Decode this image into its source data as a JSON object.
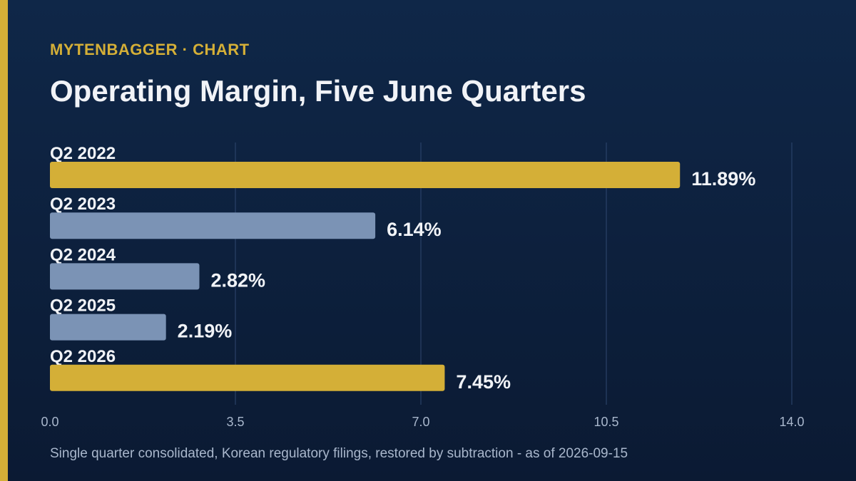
{
  "header": {
    "brand": "MYTENBAGGER · CHART",
    "title": "Operating Margin, Five June Quarters"
  },
  "footnote": "Single quarter consolidated, Korean regulatory filings, restored by subtraction - as of 2026-09-15",
  "colors": {
    "highlight": "#d4af37",
    "normal": "#7b93b5",
    "grid": "#2f4770",
    "text": "#f1f3f7",
    "tick": "#a9b7cc"
  },
  "chart_data": {
    "type": "bar",
    "orientation": "horizontal",
    "categories": [
      "Q2 2022",
      "Q2 2023",
      "Q2 2024",
      "Q2 2025",
      "Q2 2026"
    ],
    "values": [
      11.89,
      6.14,
      2.82,
      2.19,
      7.45
    ],
    "value_labels": [
      "11.89%",
      "6.14%",
      "2.82%",
      "2.19%",
      "7.45%"
    ],
    "highlighted": [
      true,
      false,
      false,
      false,
      true
    ],
    "xlim": [
      0,
      14
    ],
    "xticks": [
      "0.0",
      "3.5",
      "7.0",
      "10.5",
      "14.0"
    ],
    "xtick_values": [
      0,
      3.5,
      7,
      10.5,
      14
    ],
    "grid": true,
    "title": "Operating Margin, Five June Quarters",
    "xlabel": "",
    "ylabel": ""
  }
}
